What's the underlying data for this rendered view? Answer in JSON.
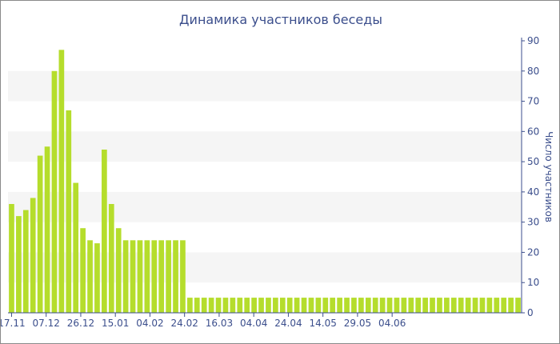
{
  "chart_data": {
    "type": "bar",
    "title": "Динамика участников беседы",
    "xlabel": "",
    "ylabel": "Число участников",
    "ylim": [
      0,
      90
    ],
    "yticks": [
      0,
      10,
      20,
      30,
      40,
      50,
      60,
      70,
      80,
      90
    ],
    "x_tick_labels": [
      "17.11",
      "07.12",
      "26.12",
      "15.01",
      "04.02",
      "24.02",
      "16.03",
      "04.04",
      "24.04",
      "14.05",
      "29.05",
      "04.06"
    ],
    "bar_color": "#b5dd2c",
    "grid_band_color": "#f5f5f5",
    "axis_color": "#3b4e8c",
    "values": [
      36,
      32,
      34,
      38,
      52,
      55,
      80,
      87,
      67,
      43,
      28,
      24,
      23,
      54,
      36,
      28,
      24,
      24,
      24,
      24,
      24,
      24,
      24,
      24,
      24,
      5,
      5,
      5,
      5,
      5,
      5,
      5,
      5,
      5,
      5,
      5,
      5,
      5,
      5,
      5,
      5,
      5,
      5,
      5,
      5,
      5,
      5,
      5,
      5,
      5,
      5,
      5,
      5,
      5,
      5,
      5,
      5,
      5,
      5,
      5,
      5,
      5,
      5,
      5,
      5,
      5,
      5,
      5,
      5,
      5,
      5,
      5
    ]
  }
}
